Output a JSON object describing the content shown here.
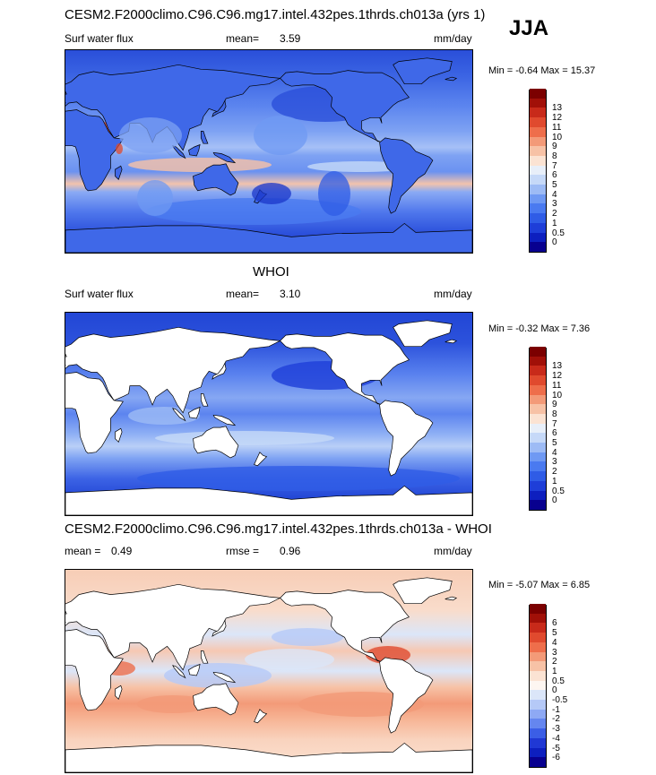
{
  "season": "JJA",
  "panels": [
    {
      "title": "CESM2.F2000climo.C96.C96.mg17.intel.432pes.1thrds.ch013a (yrs 1)",
      "left_label": "Surf water flux",
      "center_label": "mean=",
      "center_value": "3.59",
      "extra_label": "",
      "extra_value": "",
      "units": "mm/day",
      "minmax": "Min =  -0.64 Max =  15.37",
      "type": "model",
      "colorbar": {
        "colors": [
          "#08008f",
          "#0d1fbf",
          "#1e3ed8",
          "#2f5ce6",
          "#4a7af0",
          "#6f99f3",
          "#9dbbf5",
          "#c6d9f8",
          "#e8eff9",
          "#fbe3d3",
          "#f7c2a6",
          "#f39a78",
          "#ee6e4b",
          "#e04a2e",
          "#c82a1a",
          "#a11008",
          "#7b0000"
        ],
        "labels": [
          "0",
          "0.5",
          "1",
          "2",
          "3",
          "4",
          "5",
          "6",
          "7",
          "8",
          "9",
          "10",
          "11",
          "12",
          "13"
        ]
      }
    },
    {
      "title": "WHOI",
      "left_label": "Surf water flux",
      "center_label": "mean=",
      "center_value": "3.10",
      "extra_label": "",
      "extra_value": "",
      "units": "mm/day",
      "minmax": "Min =  -0.32 Max =   7.36",
      "type": "obs",
      "colorbar": {
        "colors": [
          "#08008f",
          "#0d1fbf",
          "#1e3ed8",
          "#2f5ce6",
          "#4a7af0",
          "#6f99f3",
          "#9dbbf5",
          "#c6d9f8",
          "#e8eff9",
          "#fbe3d3",
          "#f7c2a6",
          "#f39a78",
          "#ee6e4b",
          "#e04a2e",
          "#c82a1a",
          "#a11008",
          "#7b0000"
        ],
        "labels": [
          "0",
          "0.5",
          "1",
          "2",
          "3",
          "4",
          "5",
          "6",
          "7",
          "8",
          "9",
          "10",
          "11",
          "12",
          "13"
        ]
      }
    },
    {
      "title": "CESM2.F2000climo.C96.C96.mg17.intel.432pes.1thrds.ch013a - WHOI",
      "left_label": "mean =",
      "left_value": "0.49",
      "center_label": "rmse =",
      "center_value": "0.96",
      "units": "mm/day",
      "minmax": "Min =  -5.07 Max =   6.85",
      "type": "diff",
      "colorbar": {
        "colors": [
          "#08008f",
          "#0d1fbf",
          "#2038d4",
          "#3b5ee6",
          "#6586ef",
          "#8ea9f4",
          "#b5c9f7",
          "#dbe6f9",
          "#fdf6f1",
          "#fbe3d3",
          "#f7c2a6",
          "#f39a78",
          "#ee6e4b",
          "#e04a2e",
          "#c82a1a",
          "#a11008",
          "#7b0000"
        ],
        "labels": [
          "-6",
          "-5",
          "-4",
          "-3",
          "-2",
          "-1",
          "-0.5",
          "0",
          "0.5",
          "1",
          "2",
          "3",
          "4",
          "5",
          "6"
        ]
      }
    }
  ]
}
